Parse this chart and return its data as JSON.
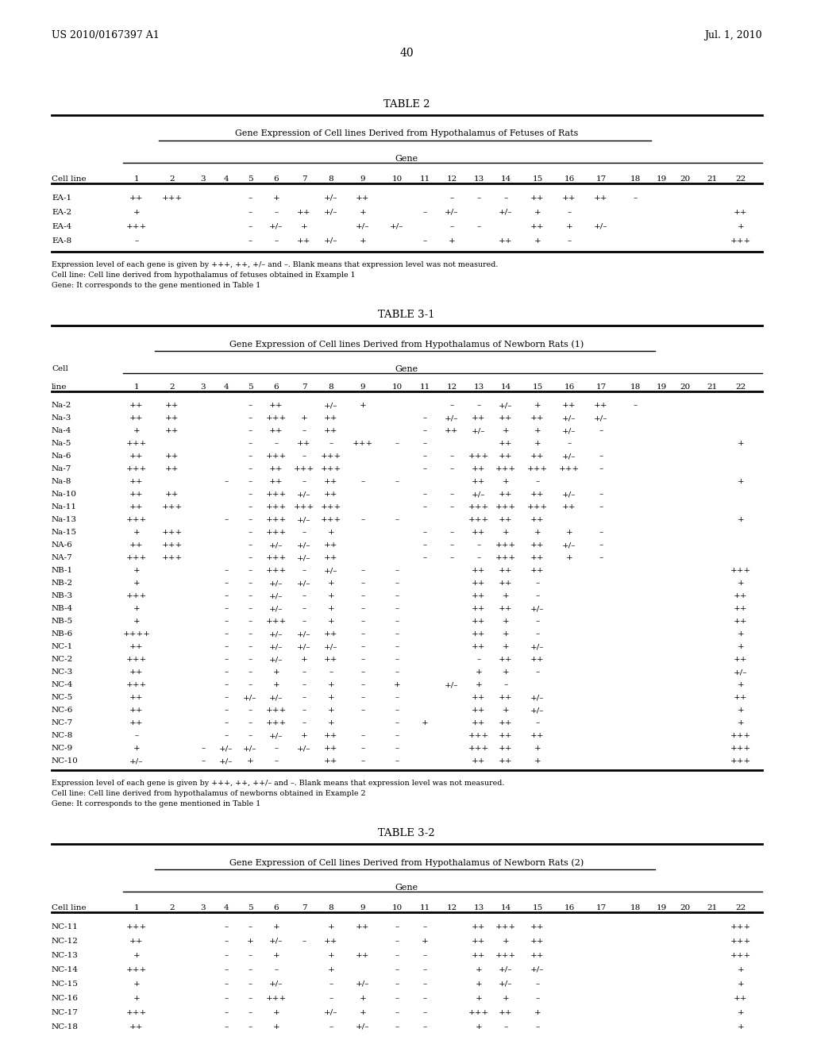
{
  "header_left": "US 2010/0167397 A1",
  "header_right": "Jul. 1, 2010",
  "page_number": "40",
  "bg": "#ffffff",
  "tc": "#000000",
  "table2": {
    "title": "TABLE 2",
    "subtitle": "Gene Expression of Cell lines Derived from Hypothalamus of Fetuses of Rats",
    "gene_label": "Gene",
    "col_headers": [
      "Cell line",
      "1",
      "2",
      "3",
      "4",
      "5",
      "6",
      "7",
      "8",
      "9",
      "10",
      "11",
      "12",
      "13",
      "14",
      "15",
      "16",
      "17",
      "18",
      "19",
      "20",
      "21",
      "22"
    ],
    "rows": [
      [
        "EA-1",
        "++",
        "+++",
        "",
        "",
        "–",
        "+",
        "",
        "+/–",
        "++",
        "",
        "",
        "–",
        "–",
        "–",
        "++",
        "++",
        "++",
        "–",
        "",
        "",
        "",
        ""
      ],
      [
        "EA-2",
        "+",
        "",
        "",
        "",
        "–",
        "–",
        "++",
        "+/–",
        "+",
        "",
        "–",
        "+/–",
        "",
        "+/–",
        "+",
        "–",
        "",
        "",
        "",
        "",
        "",
        "++"
      ],
      [
        "EA-4",
        "+++",
        "",
        "",
        "",
        "–",
        "+/–",
        "+",
        "",
        "+/–",
        "+/–",
        "",
        "–",
        "–",
        "",
        "++",
        "+",
        "+/–",
        "",
        "",
        "",
        "",
        "+"
      ],
      [
        "EA-8",
        "–",
        "",
        "",
        "",
        "–",
        "–",
        "++",
        "+/–",
        "+",
        "",
        "–",
        "+",
        "",
        "++",
        "+",
        "–",
        "",
        "",
        "",
        "",
        "",
        "+++"
      ]
    ],
    "footnotes": [
      "Expression level of each gene is given by +++, ++, +/– and –. Blank means that expression level was not measured.",
      "Cell line: Cell line derived from hypothalamus of fetuses obtained in Example 1",
      "Gene: It corresponds to the gene mentioned in Table 1"
    ]
  },
  "table31": {
    "title": "TABLE 3-1",
    "subtitle": "Gene Expression of Cell lines Derived from Hypothalamus of Newborn Rats (1)",
    "gene_label": "Gene",
    "rows": [
      [
        "Na-2",
        "++",
        "++",
        "",
        "",
        "–",
        "++",
        "",
        "+/–",
        "+",
        "",
        "",
        "–",
        "–",
        "+/–",
        "+",
        "++",
        "++",
        "–",
        "",
        "",
        "",
        ""
      ],
      [
        "Na-3",
        "++",
        "++",
        "",
        "",
        "–",
        "+++",
        "+",
        "++",
        "",
        "",
        "–",
        "+/–",
        "++",
        "++",
        "++",
        "+/–",
        "+/–",
        "",
        "",
        "",
        "",
        ""
      ],
      [
        "Na-4",
        "+",
        "++",
        "",
        "",
        "–",
        "++",
        "–",
        "++",
        "",
        "",
        "–",
        "++",
        "+/–",
        "+",
        "+",
        "+/–",
        "–",
        "",
        "",
        "",
        "",
        ""
      ],
      [
        "Na-5",
        "+++",
        "",
        "",
        "",
        "–",
        "–",
        "++",
        "–",
        "+++",
        "–",
        "–",
        "",
        "",
        "++",
        "+",
        "–",
        "",
        "",
        "",
        "",
        "",
        "+"
      ],
      [
        "Na-6",
        "++",
        "++",
        "",
        "",
        "–",
        "+++",
        "–",
        "+++",
        "",
        "",
        "–",
        "–",
        "+++",
        "++",
        "++",
        "+/–",
        "–",
        "",
        "",
        "",
        "",
        ""
      ],
      [
        "Na-7",
        "+++",
        "++",
        "",
        "",
        "–",
        "++",
        "+++",
        "+++",
        "",
        "",
        "–",
        "–",
        "++",
        "+++",
        "+++",
        "+++",
        "–",
        "",
        "",
        "",
        "",
        ""
      ],
      [
        "Na-8",
        "++",
        "",
        "",
        "–",
        "–",
        "++",
        "–",
        "++",
        "–",
        "–",
        "",
        "",
        "++",
        "+",
        "–",
        "",
        "",
        "",
        "",
        "",
        "",
        "+"
      ],
      [
        "Na-10",
        "++",
        "++",
        "",
        "",
        "–",
        "+++",
        "+/–",
        "++",
        "",
        "",
        "–",
        "–",
        "+/–",
        "++",
        "++",
        "+/–",
        "–",
        "",
        "",
        "",
        "",
        ""
      ],
      [
        "Na-11",
        "++",
        "+++",
        "",
        "",
        "–",
        "+++",
        "+++",
        "+++",
        "",
        "",
        "–",
        "–",
        "+++",
        "+++",
        "+++",
        "++",
        "–",
        "",
        "",
        "",
        "",
        ""
      ],
      [
        "Na-13",
        "+++",
        "",
        "",
        "–",
        "–",
        "+++",
        "+/–",
        "+++",
        "–",
        "–",
        "",
        "",
        "+++",
        "++",
        "++",
        "",
        "",
        "",
        "",
        "",
        "",
        "+"
      ],
      [
        "Na-15",
        "+",
        "+++",
        "",
        "",
        "–",
        "+++",
        "–",
        "+",
        "",
        "",
        "–",
        "–",
        "++",
        "+",
        "+",
        "+",
        "–",
        "",
        "",
        "",
        "",
        ""
      ],
      [
        "NA-6",
        "++",
        "+++",
        "",
        "",
        "–",
        "+/–",
        "+/–",
        "++",
        "",
        "",
        "–",
        "–",
        "–",
        "+++",
        "++",
        "+/–",
        "–",
        "",
        "",
        "",
        "",
        ""
      ],
      [
        "NA-7",
        "+++",
        "+++",
        "",
        "",
        "–",
        "+++",
        "+/–",
        "++",
        "",
        "",
        "–",
        "–",
        "–",
        "+++",
        "++",
        "+",
        "–",
        "",
        "",
        "",
        "",
        ""
      ],
      [
        "NB-1",
        "+",
        "",
        "",
        "–",
        "–",
        "+++",
        "–",
        "+/–",
        "–",
        "–",
        "",
        "",
        "++",
        "++",
        "++",
        "",
        "",
        "",
        "",
        "",
        "",
        "+++"
      ],
      [
        "NB-2",
        "+",
        "",
        "",
        "–",
        "–",
        "+/–",
        "+/–",
        "+",
        "–",
        "–",
        "",
        "",
        "++",
        "++",
        "–",
        "",
        "",
        "",
        "",
        "",
        "",
        "+"
      ],
      [
        "NB-3",
        "+++",
        "",
        "",
        "–",
        "–",
        "+/–",
        "–",
        "+",
        "–",
        "–",
        "",
        "",
        "++",
        "+",
        "–",
        "",
        "",
        "",
        "",
        "",
        "",
        "++"
      ],
      [
        "NB-4",
        "+",
        "",
        "",
        "–",
        "–",
        "+/–",
        "–",
        "+",
        "–",
        "–",
        "",
        "",
        "++",
        "++",
        "+/–",
        "",
        "",
        "",
        "",
        "",
        "",
        "++"
      ],
      [
        "NB-5",
        "+",
        "",
        "",
        "–",
        "–",
        "+++",
        "–",
        "+",
        "–",
        "–",
        "",
        "",
        "++",
        "+",
        "–",
        "",
        "",
        "",
        "",
        "",
        "",
        "++"
      ],
      [
        "NB-6",
        "++++",
        "",
        "",
        "–",
        "–",
        "+/–",
        "+/–",
        "++",
        "–",
        "–",
        "",
        "",
        "++",
        "+",
        "–",
        "",
        "",
        "",
        "",
        "",
        "",
        "+"
      ],
      [
        "NC-1",
        "++",
        "",
        "",
        "–",
        "–",
        "+/–",
        "+/–",
        "+/–",
        "–",
        "–",
        "",
        "",
        "++",
        "+",
        "+/–",
        "",
        "",
        "",
        "",
        "",
        "",
        "+"
      ],
      [
        "NC-2",
        "+++",
        "",
        "",
        "–",
        "–",
        "+/–",
        "+",
        "++",
        "–",
        "–",
        "",
        "",
        "–",
        "++",
        "++",
        "",
        "",
        "",
        "",
        "",
        "",
        "++"
      ],
      [
        "NC-3",
        "++",
        "",
        "",
        "–",
        "–",
        "+",
        "–",
        "–",
        "–",
        "–",
        "",
        "",
        "+",
        "+",
        "–",
        "",
        "",
        "",
        "",
        "",
        "",
        "+/–"
      ],
      [
        "NC-4",
        "+++",
        "",
        "",
        "–",
        "–",
        "+",
        "–",
        "+",
        "–",
        "+",
        "",
        "+/–",
        "+",
        "–",
        "",
        "",
        "",
        "",
        "",
        "",
        "",
        "+"
      ],
      [
        "NC-5",
        "++",
        "",
        "",
        "–",
        "+/–",
        "+/–",
        "–",
        "+",
        "–",
        "–",
        "",
        "",
        "++",
        "++",
        "+/–",
        "",
        "",
        "",
        "",
        "",
        "",
        "++"
      ],
      [
        "NC-6",
        "++",
        "",
        "",
        "–",
        "–",
        "+++",
        "–",
        "+",
        "–",
        "–",
        "",
        "",
        "++",
        "+",
        "+/–",
        "",
        "",
        "",
        "",
        "",
        "",
        "+"
      ],
      [
        "NC-7",
        "++",
        "",
        "",
        "–",
        "–",
        "+++",
        "–",
        "+",
        "",
        "–",
        "+",
        "",
        "++",
        "++",
        "–",
        "",
        "",
        "",
        "",
        "",
        "",
        "+"
      ],
      [
        "NC-8",
        "–",
        "",
        "",
        "–",
        "–",
        "+/–",
        "+",
        "++",
        "–",
        "–",
        "",
        "",
        "+++",
        "++",
        "++",
        "",
        "",
        "",
        "",
        "",
        "",
        "+++"
      ],
      [
        "NC-9",
        "+",
        "",
        "–",
        "+/–",
        "+/–",
        "–",
        "+/–",
        "++",
        "–",
        "–",
        "",
        "",
        "+++",
        "++",
        "+",
        "",
        "",
        "",
        "",
        "",
        "",
        "+++"
      ],
      [
        "NC-10",
        "+/–",
        "",
        "–",
        "+/–",
        "+",
        "–",
        "",
        "++",
        "–",
        "–",
        "",
        "",
        "++",
        "++",
        "+",
        "",
        "",
        "",
        "",
        "",
        "",
        "+++"
      ]
    ],
    "footnotes": [
      "Expression level of each gene is given by +++, ++, ++/– and –. Blank means that expression level was not measured.",
      "Cell line: Cell line derived from hypothalamus of newborns obtained in Example 2",
      "Gene: It corresponds to the gene mentioned in Table 1"
    ]
  },
  "table32": {
    "title": "TABLE 3-2",
    "subtitle": "Gene Expression of Cell lines Derived from Hypothalamus of Newborn Rats (2)",
    "gene_label": "Gene",
    "col_headers": [
      "Cell line",
      "1",
      "2",
      "3",
      "4",
      "5",
      "6",
      "7",
      "8",
      "9",
      "10",
      "11",
      "12",
      "13",
      "14",
      "15",
      "16",
      "17",
      "18",
      "19",
      "20",
      "21",
      "22"
    ],
    "rows": [
      [
        "NC-11",
        "+++",
        "",
        "",
        "–",
        "–",
        "+",
        "",
        "+",
        "++",
        "–",
        "–",
        "",
        "++",
        "+++",
        "++",
        "",
        "",
        "",
        "",
        "",
        "",
        "+++"
      ],
      [
        "NC-12",
        "++",
        "",
        "",
        "–",
        "+",
        "+/–",
        "–",
        "++",
        "",
        "–",
        "+",
        "",
        "++",
        "+",
        "++",
        "",
        "",
        "",
        "",
        "",
        "",
        "+++"
      ],
      [
        "NC-13",
        "+",
        "",
        "",
        "–",
        "–",
        "+",
        "",
        "+",
        "++",
        "–",
        "–",
        "",
        "++",
        "+++",
        "++",
        "",
        "",
        "",
        "",
        "",
        "",
        "+++"
      ],
      [
        "NC-14",
        "+++",
        "",
        "",
        "–",
        "–",
        "–",
        "",
        "+",
        "",
        "–",
        "–",
        "",
        "+",
        "+/–",
        "+/–",
        "",
        "",
        "",
        "",
        "",
        "",
        "+"
      ],
      [
        "NC-15",
        "+",
        "",
        "",
        "–",
        "–",
        "+/–",
        "",
        "–",
        "+/–",
        "–",
        "–",
        "",
        "+",
        "+/–",
        "–",
        "",
        "",
        "",
        "",
        "",
        "",
        "+"
      ],
      [
        "NC-16",
        "+",
        "",
        "",
        "–",
        "–",
        "+++",
        "",
        "–",
        "+",
        "–",
        "–",
        "",
        "+",
        "+",
        "–",
        "",
        "",
        "",
        "",
        "",
        "",
        "++"
      ],
      [
        "NC-17",
        "+++",
        "",
        "",
        "–",
        "–",
        "+",
        "",
        "+/–",
        "+",
        "–",
        "–",
        "",
        "+++",
        "++",
        "+",
        "",
        "",
        "",
        "",
        "",
        "",
        "+"
      ],
      [
        "NC-18",
        "++",
        "",
        "",
        "–",
        "–",
        "+",
        "",
        "–",
        "+/–",
        "–",
        "–",
        "",
        "+",
        "–",
        "–",
        "",
        "",
        "",
        "",
        "",
        "",
        "+"
      ]
    ]
  }
}
